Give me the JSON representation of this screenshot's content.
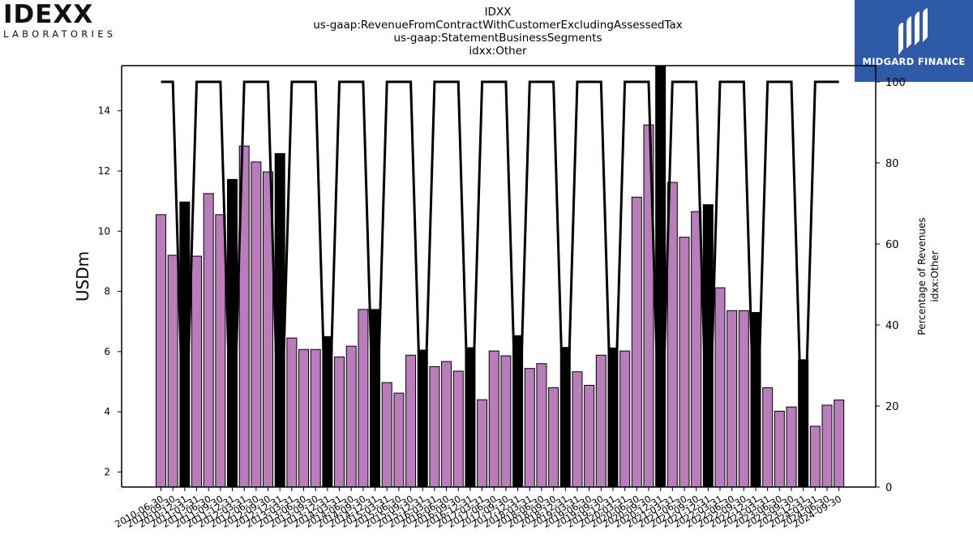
{
  "logo_left": {
    "word": "IDEXX",
    "sub": "LABORATORIES"
  },
  "logo_right": {
    "name": "MIDGARD FINANCE"
  },
  "titles": [
    "IDXX",
    "us-gaap:RevenueFromContractWithCustomerExcludingAssessedTax",
    "us-gaap:StatementBusinessSegments",
    "idxx:Other"
  ],
  "chart_data": {
    "type": "bar",
    "ylabel": "USDm",
    "y2label_lines": [
      "Percentage of Revenues",
      "idxx:Other"
    ],
    "ylim": [
      1.5,
      15.5
    ],
    "y_ticks": [
      2,
      4,
      6,
      8,
      10,
      12,
      14
    ],
    "y2lim": [
      0,
      104
    ],
    "y2_ticks": [
      0,
      20,
      40,
      60,
      80,
      100
    ],
    "colors": {
      "quarter_bar": "#b87dba",
      "annual_bar": "#000000",
      "line": "#000000"
    },
    "periods": [
      "2010-06-30",
      "2010-09-30",
      "2010-12-31",
      "2011-03-31",
      "2011-06-30",
      "2011-09-30",
      "2011-12-31",
      "2012-03-31",
      "2012-06-30",
      "2012-09-30",
      "2012-12-31",
      "2013-03-31",
      "2013-06-30",
      "2013-09-30",
      "2013-12-31",
      "2014-03-31",
      "2014-06-30",
      "2014-09-30",
      "2014-12-31",
      "2015-03-31",
      "2015-06-30",
      "2015-09-30",
      "2015-12-31",
      "2016-03-31",
      "2016-06-30",
      "2016-09-30",
      "2016-12-31",
      "2017-03-31",
      "2017-06-30",
      "2017-09-30",
      "2017-12-31",
      "2018-03-31",
      "2018-06-30",
      "2018-09-30",
      "2018-12-31",
      "2019-03-31",
      "2019-06-30",
      "2019-09-30",
      "2019-12-31",
      "2020-03-31",
      "2020-06-30",
      "2020-09-30",
      "2020-12-31",
      "2021-03-31",
      "2021-06-30",
      "2021-09-30",
      "2021-12-31",
      "2022-03-31",
      "2022-06-30",
      "2022-09-30",
      "2022-12-31",
      "2023-03-31",
      "2023-06-30",
      "2023-09-30",
      "2023-12-31",
      "2024-03-31",
      "2024-06-30",
      "2024-09-30"
    ],
    "values": [
      10.55,
      9.2,
      10.97,
      9.17,
      11.25,
      10.55,
      11.72,
      12.83,
      12.3,
      11.97,
      12.58,
      6.45,
      6.07,
      6.07,
      6.5,
      5.82,
      6.18,
      7.4,
      7.4,
      4.97,
      4.62,
      5.88,
      6.05,
      5.5,
      5.67,
      5.35,
      6.13,
      4.4,
      6.02,
      5.86,
      6.53,
      5.44,
      5.6,
      4.8,
      6.14,
      5.33,
      4.88,
      5.88,
      6.12,
      6.02,
      11.13,
      13.53,
      15.6,
      11.62,
      9.8,
      10.65,
      10.88,
      8.12,
      7.36,
      7.36,
      7.3,
      4.8,
      4.02,
      4.16,
      5.73,
      3.52,
      4.22,
      4.39
    ],
    "annual": [
      false,
      false,
      true,
      false,
      false,
      false,
      true,
      false,
      false,
      false,
      true,
      false,
      false,
      false,
      true,
      false,
      false,
      false,
      true,
      false,
      false,
      false,
      true,
      false,
      false,
      false,
      true,
      false,
      false,
      false,
      true,
      false,
      false,
      false,
      true,
      false,
      false,
      false,
      true,
      false,
      false,
      false,
      true,
      false,
      false,
      false,
      true,
      false,
      false,
      false,
      true,
      false,
      false,
      false,
      true,
      false,
      false,
      false
    ],
    "percentage_line": [
      100,
      100,
      0,
      100,
      100,
      100,
      0,
      100,
      100,
      100,
      0,
      100,
      100,
      100,
      0,
      100,
      100,
      100,
      0,
      100,
      100,
      100,
      0,
      100,
      100,
      100,
      0,
      100,
      100,
      100,
      0,
      100,
      100,
      100,
      0,
      100,
      100,
      100,
      0,
      100,
      100,
      100,
      0,
      100,
      100,
      100,
      0,
      100,
      100,
      100,
      0,
      100,
      100,
      100,
      0,
      100,
      100,
      100
    ]
  }
}
